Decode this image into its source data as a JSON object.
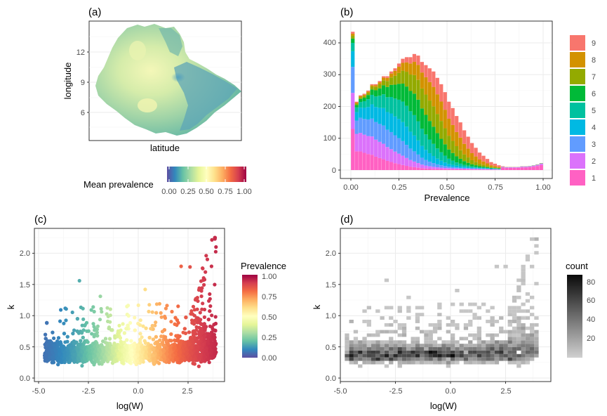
{
  "chart_data": [
    {
      "panel_tag": "(a)",
      "type": "heatmap",
      "xlabel": "latitude",
      "ylabel": "longitude",
      "y_ticks": [
        "12",
        "9",
        "6"
      ],
      "colorbar_title": "Mean prevalence",
      "colorbar_ticks": [
        "0.00",
        "0.25",
        "0.50",
        "0.75",
        "1.00"
      ],
      "colorscale": [
        "#5e4fa2",
        "#3288bd",
        "#66c2a5",
        "#abdda4",
        "#e6f598",
        "#ffffbf",
        "#fee08b",
        "#fdae61",
        "#f46d43",
        "#d53e4f",
        "#9e0142"
      ]
    },
    {
      "panel_tag": "(b)",
      "type": "bar",
      "stacked": true,
      "xlabel": "Prevalence",
      "ylabel": "",
      "x_ticks": [
        "0.00",
        "0.25",
        "0.50",
        "0.75",
        "1.00"
      ],
      "y_ticks": [
        "0",
        "100",
        "200",
        "300",
        "400"
      ],
      "xlim": [
        0,
        1
      ],
      "ylim": [
        0,
        440
      ],
      "legend_position": "right",
      "series": [
        {
          "name": "1",
          "color": "#FF61C3"
        },
        {
          "name": "2",
          "color": "#DB72FB"
        },
        {
          "name": "3",
          "color": "#619CFF"
        },
        {
          "name": "4",
          "color": "#00B9E3"
        },
        {
          "name": "5",
          "color": "#00C19F"
        },
        {
          "name": "6",
          "color": "#00BA38"
        },
        {
          "name": "7",
          "color": "#93AA00"
        },
        {
          "name": "8",
          "color": "#D39200"
        },
        {
          "name": "9",
          "color": "#F8766D"
        }
      ],
      "bin_centers": [
        0.01,
        0.03,
        0.05,
        0.07,
        0.09,
        0.11,
        0.13,
        0.15,
        0.17,
        0.19,
        0.21,
        0.23,
        0.25,
        0.27,
        0.29,
        0.31,
        0.33,
        0.35,
        0.37,
        0.39,
        0.41,
        0.43,
        0.45,
        0.47,
        0.49,
        0.51,
        0.53,
        0.55,
        0.57,
        0.59,
        0.61,
        0.63,
        0.65,
        0.67,
        0.69,
        0.71,
        0.73,
        0.75,
        0.77,
        0.79,
        0.81,
        0.83,
        0.85,
        0.87,
        0.89,
        0.91,
        0.93,
        0.95,
        0.97,
        0.99
      ],
      "totals": [
        435,
        215,
        235,
        240,
        250,
        270,
        270,
        280,
        295,
        295,
        310,
        320,
        335,
        350,
        355,
        355,
        365,
        360,
        340,
        330,
        320,
        310,
        290,
        270,
        245,
        215,
        195,
        170,
        150,
        125,
        105,
        85,
        70,
        55,
        45,
        35,
        25,
        20,
        15,
        12,
        10,
        10,
        10,
        10,
        12,
        12,
        13,
        15,
        18,
        22
      ]
    },
    {
      "panel_tag": "(c)",
      "type": "scatter",
      "xlabel": "log(W)",
      "ylabel": "k",
      "x_ticks": [
        "-5.0",
        "-2.5",
        "0.0",
        "2.5"
      ],
      "y_ticks": [
        "0.0",
        "0.5",
        "1.0",
        "1.5",
        "2.0"
      ],
      "xlim": [
        -5,
        4.5
      ],
      "ylim": [
        -0.05,
        2.3
      ],
      "colorbar_title": "Prevalence",
      "colorbar_ticks": [
        "1.00",
        "0.75",
        "0.50",
        "0.25",
        "0.00"
      ]
    },
    {
      "panel_tag": "(d)",
      "type": "heatmap",
      "xlabel": "log(W)",
      "ylabel": "k",
      "x_ticks": [
        "-5.0",
        "-2.5",
        "0.0",
        "2.5"
      ],
      "y_ticks": [
        "0.0",
        "0.5",
        "1.0",
        "1.5",
        "2.0"
      ],
      "xlim": [
        -5,
        4.5
      ],
      "ylim": [
        -0.05,
        2.3
      ],
      "colorbar_title": "count",
      "colorbar_ticks": [
        "80",
        "60",
        "40",
        "20"
      ],
      "count_range": [
        1,
        88
      ]
    }
  ]
}
